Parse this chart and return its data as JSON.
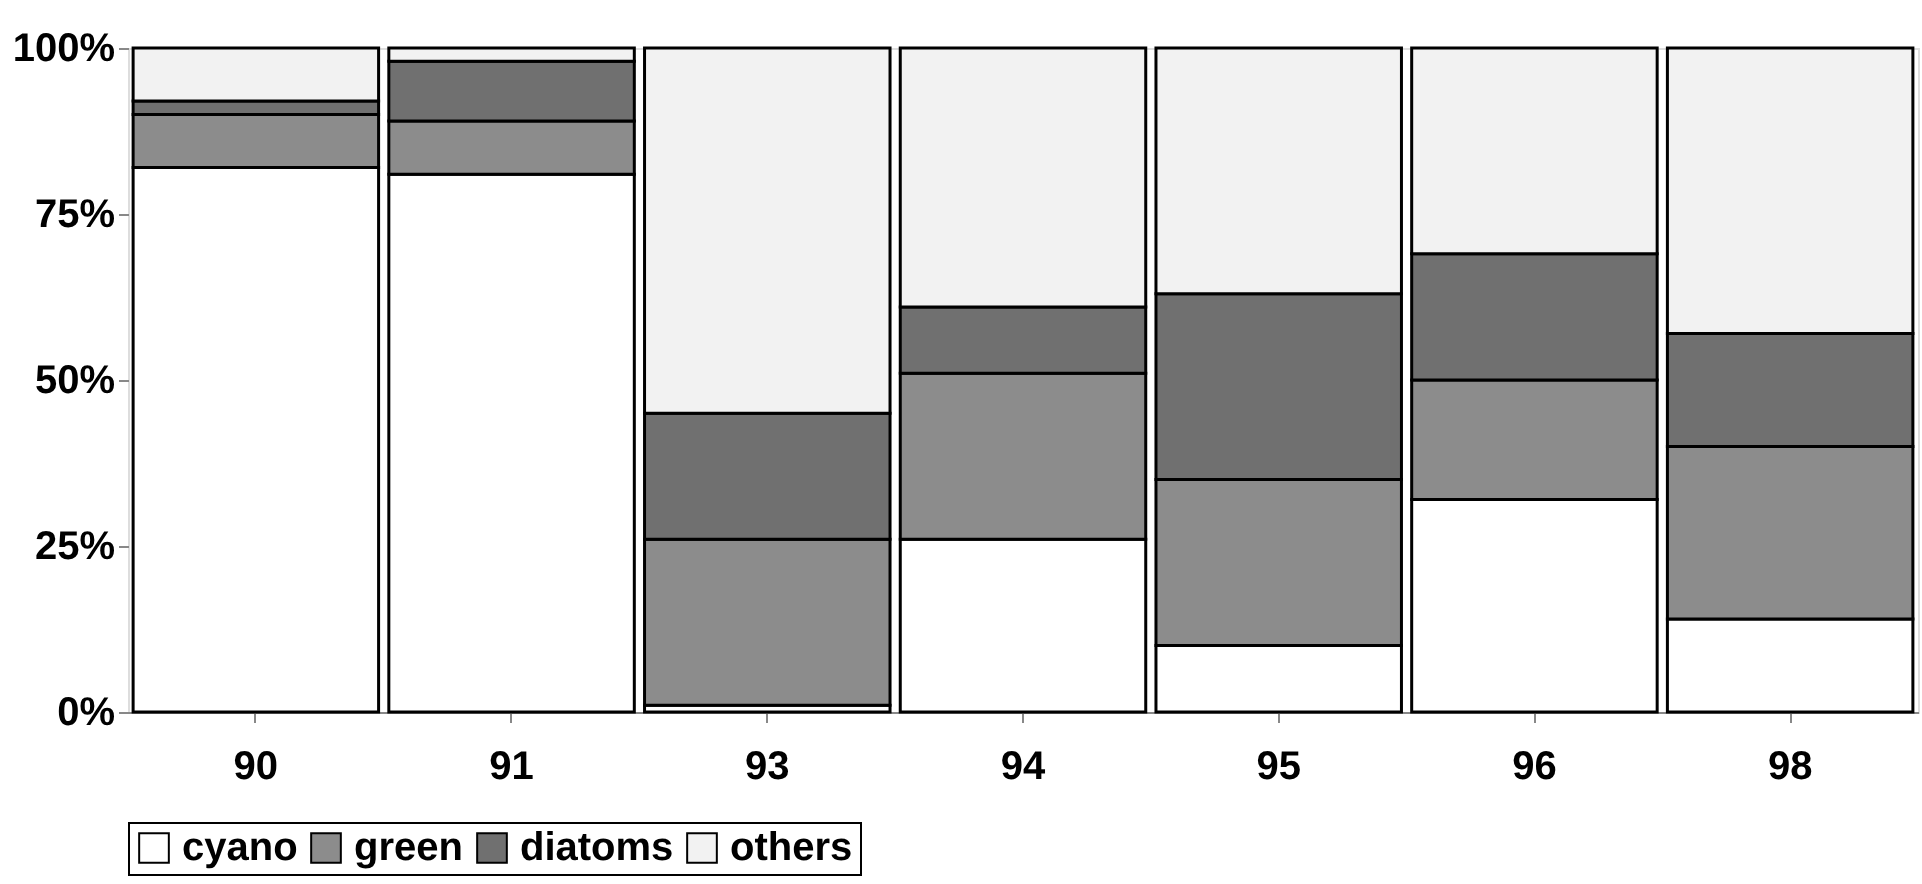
{
  "chart_data": {
    "type": "bar",
    "stacked": true,
    "categories": [
      "90",
      "91",
      "93",
      "94",
      "95",
      "96",
      "98"
    ],
    "series": [
      {
        "name": "cyano",
        "color": "#ffffff",
        "values": [
          82,
          81,
          1,
          26,
          10,
          32,
          14
        ]
      },
      {
        "name": "green",
        "color": "#8c8c8c",
        "values": [
          8,
          8,
          25,
          25,
          25,
          18,
          26
        ]
      },
      {
        "name": "diatoms",
        "color": "#707070",
        "values": [
          2,
          9,
          19,
          10,
          28,
          19,
          17
        ]
      },
      {
        "name": "others",
        "color": "#f2f2f2",
        "values": [
          8,
          2,
          55,
          39,
          37,
          31,
          43
        ]
      }
    ],
    "ylim": [
      0,
      100
    ],
    "yticks": [
      {
        "value": 0,
        "label": "0%"
      },
      {
        "value": 25,
        "label": "25%"
      },
      {
        "value": 50,
        "label": "50%"
      },
      {
        "value": 75,
        "label": "75%"
      },
      {
        "value": 100,
        "label": "100%"
      }
    ],
    "legend": "bottom",
    "grid": false
  }
}
